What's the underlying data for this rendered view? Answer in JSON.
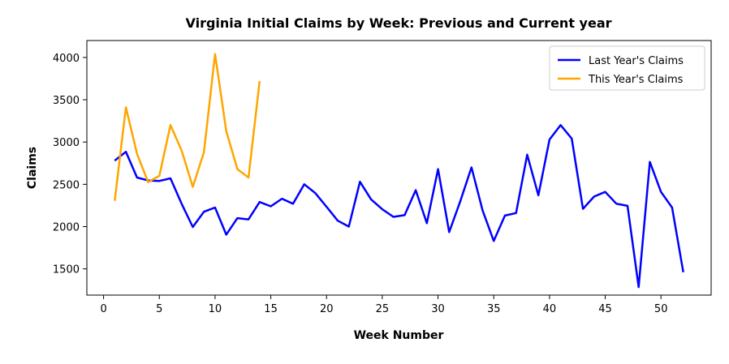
{
  "chart_data": {
    "type": "line",
    "title": "Virginia Initial Claims by Week: Previous and Current year",
    "xlabel": "Week Number",
    "ylabel": "Claims",
    "xlim": [
      -1.5,
      54.5
    ],
    "ylim": [
      1190,
      4200
    ],
    "xticks": [
      0,
      5,
      10,
      15,
      20,
      25,
      30,
      35,
      40,
      45,
      50
    ],
    "yticks": [
      1500,
      2000,
      2500,
      3000,
      3500,
      4000
    ],
    "grid": false,
    "legend_position": "top-right",
    "series": [
      {
        "name": "Last Year's Claims",
        "color": "#0000ff",
        "x": [
          1,
          2,
          3,
          4,
          5,
          6,
          7,
          8,
          9,
          10,
          11,
          12,
          13,
          14,
          15,
          16,
          17,
          18,
          19,
          20,
          21,
          22,
          23,
          24,
          25,
          26,
          27,
          28,
          29,
          30,
          31,
          32,
          33,
          34,
          35,
          36,
          37,
          38,
          39,
          40,
          41,
          42,
          43,
          44,
          45,
          46,
          47,
          48,
          49,
          50,
          51,
          52
        ],
        "values": [
          2780,
          2885,
          2580,
          2545,
          2540,
          2570,
          2270,
          1995,
          2175,
          2225,
          1905,
          2100,
          2085,
          2290,
          2240,
          2330,
          2270,
          2500,
          2395,
          2235,
          2070,
          2000,
          2530,
          2320,
          2205,
          2115,
          2135,
          2430,
          2040,
          2680,
          1935,
          2300,
          2700,
          2190,
          1830,
          2130,
          2160,
          2850,
          2370,
          3030,
          3200,
          3040,
          2210,
          2355,
          2410,
          2270,
          2245,
          1285,
          2765,
          2410,
          2225,
          1460
        ]
      },
      {
        "name": "This Year's Claims",
        "color": "#ffa500",
        "x": [
          1,
          2,
          3,
          4,
          5,
          6,
          7,
          8,
          9,
          10,
          11,
          12,
          13,
          14
        ],
        "values": [
          2305,
          3410,
          2860,
          2525,
          2600,
          3200,
          2900,
          2470,
          2880,
          4040,
          3130,
          2680,
          2580,
          3720
        ]
      }
    ]
  }
}
